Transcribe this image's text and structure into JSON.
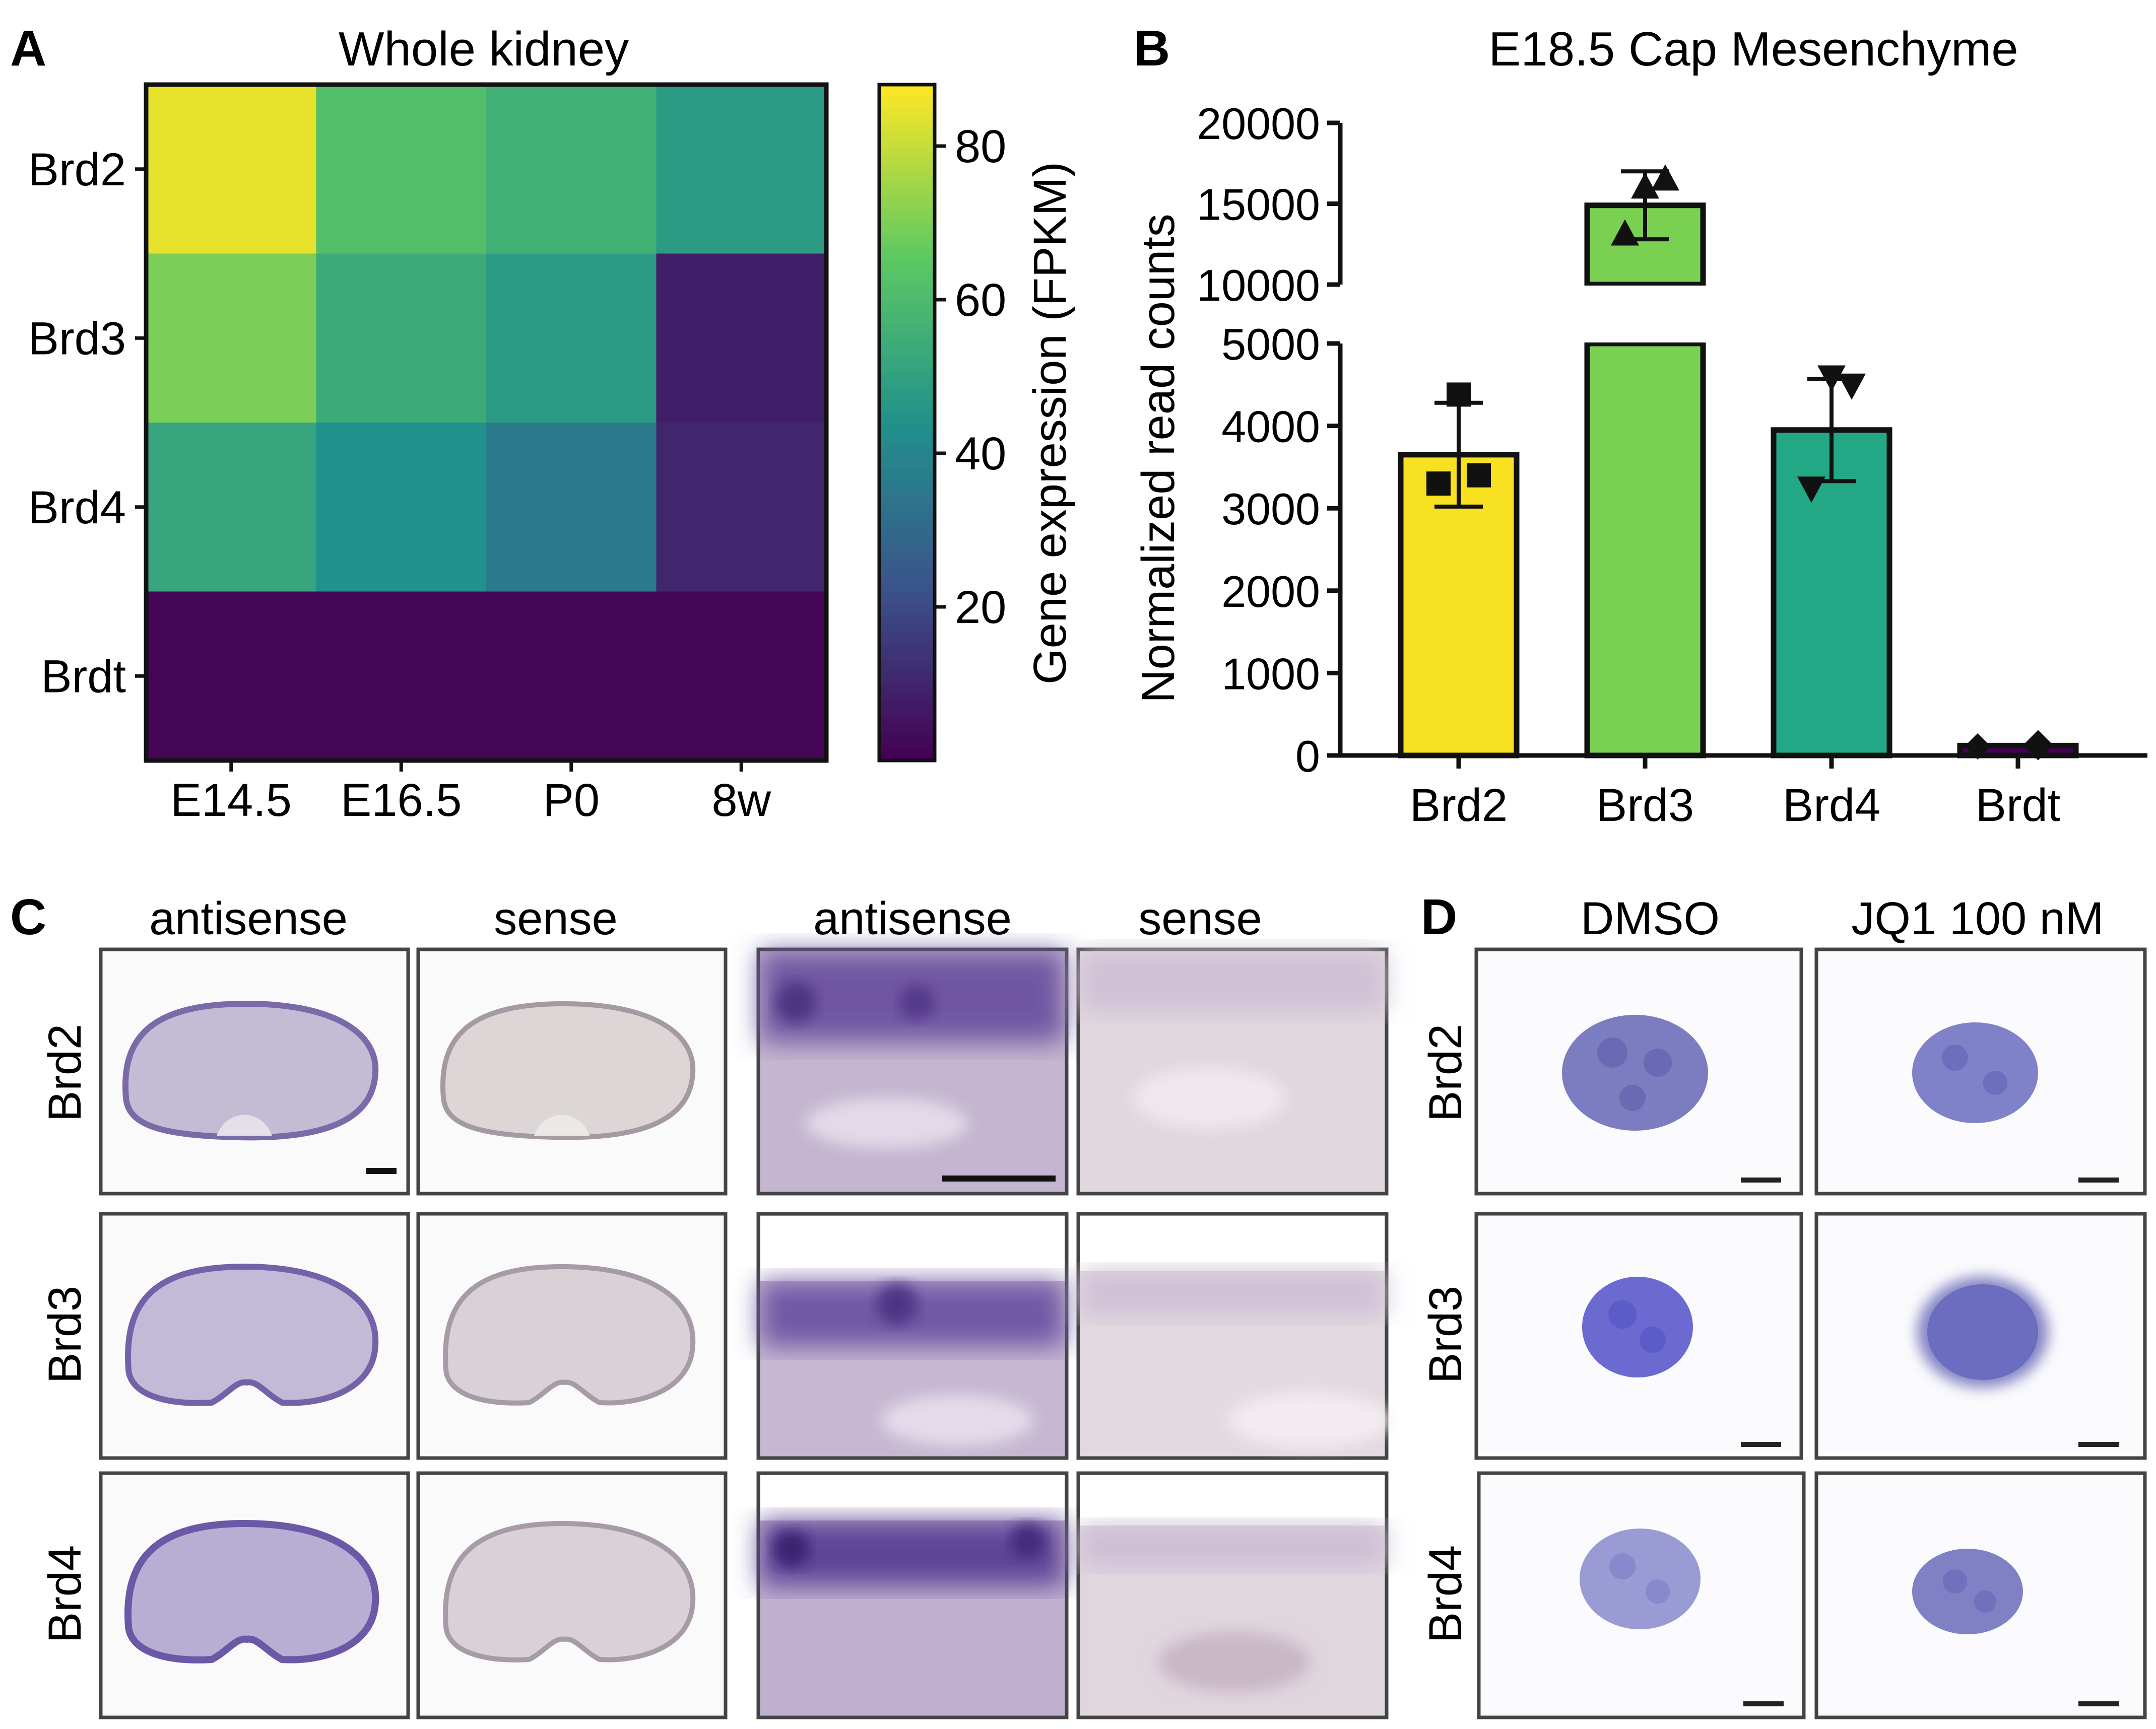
{
  "panels": {
    "A": {
      "letter": "A",
      "title": "Whole kidney",
      "rows": [
        "Brd2",
        "Brd3",
        "Brd4",
        "Brdt"
      ],
      "cols": [
        "E14.5",
        "E16.5",
        "P0",
        "8w"
      ],
      "values": [
        [
          85,
          62,
          56,
          48
        ],
        [
          70,
          54,
          48,
          8
        ],
        [
          52,
          44,
          36,
          10
        ],
        [
          1,
          1,
          1,
          1
        ]
      ],
      "colorbar_label": "Gene expression (FPKM)",
      "colorbar_ticks": [
        "20",
        "40",
        "60",
        "80"
      ],
      "colorbar_tick_values": [
        20,
        40,
        60,
        80
      ],
      "colorbar_range": [
        0,
        88
      ]
    },
    "B": {
      "letter": "B"
    },
    "C": {
      "letter": "C",
      "col_headers": [
        "antisense",
        "sense",
        "antisense",
        "sense"
      ],
      "row_labels": [
        "Brd2",
        "Brd3",
        "Brd4"
      ]
    },
    "D": {
      "letter": "D",
      "col_headers": [
        "DMSO",
        "JQ1 100 nM"
      ],
      "row_labels": [
        "Brd2",
        "Brd3",
        "Brd4"
      ]
    }
  },
  "chart_data": [
    {
      "type": "heatmap",
      "title": "Whole kidney",
      "x": [
        "E14.5",
        "E16.5",
        "P0",
        "8w"
      ],
      "y": [
        "Brd2",
        "Brd3",
        "Brd4",
        "Brdt"
      ],
      "z": [
        [
          85,
          62,
          56,
          48
        ],
        [
          70,
          54,
          48,
          8
        ],
        [
          52,
          44,
          36,
          10
        ],
        [
          1,
          1,
          1,
          1
        ]
      ],
      "colorbar_label": "Gene expression (FPKM)"
    },
    {
      "type": "bar",
      "title": "E18.5 Cap Mesenchyme",
      "ylabel": "Normalized read counts",
      "categories": [
        "Brd2",
        "Brd3",
        "Brd4",
        "Brdt"
      ],
      "values": [
        3650,
        14900,
        3950,
        120
      ],
      "errors": [
        630,
        2100,
        620,
        30
      ],
      "colors": [
        "#F8E121",
        "#7AD151",
        "#22A884",
        "#440154"
      ],
      "points": [
        [
          4380,
          3400,
          3300
        ],
        [
          16000,
          16500,
          13100
        ],
        [
          4600,
          4500,
          3250
        ],
        [
          110,
          150,
          100
        ]
      ],
      "markers": [
        "square",
        "triangle-up",
        "triangle-down",
        "diamond"
      ],
      "y_lower_ticks": [
        "0",
        "1000",
        "2000",
        "3000",
        "4000",
        "5000"
      ],
      "y_lower_tick_values": [
        0,
        1000,
        2000,
        3000,
        4000,
        5000
      ],
      "y_upper_ticks": [
        "10000",
        "15000",
        "20000"
      ],
      "y_upper_tick_values": [
        10000,
        15000,
        20000
      ],
      "ylim_lower": [
        0,
        5000
      ],
      "ylim_upper": [
        10000,
        20000
      ],
      "axis_break": [
        5000,
        10000
      ]
    }
  ]
}
